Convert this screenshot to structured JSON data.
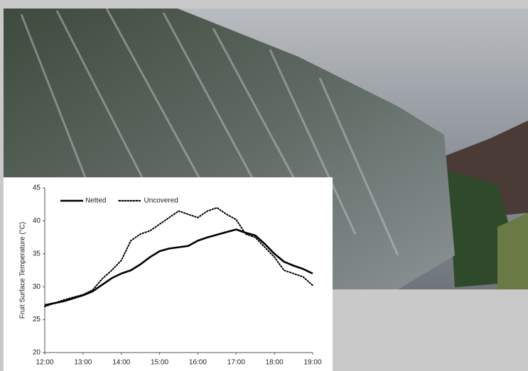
{
  "chart_data": {
    "type": "line",
    "y_label": "Fruit Surface Temperature (°C)",
    "x": [
      12,
      12.5,
      13,
      13.25,
      13.5,
      13.75,
      14,
      14.25,
      14.5,
      14.75,
      15,
      15.25,
      15.5,
      15.75,
      16,
      16.25,
      16.5,
      16.75,
      17,
      17.25,
      17.5,
      17.75,
      18,
      18.25,
      18.5,
      18.75,
      19
    ],
    "series": [
      {
        "name": "Netted",
        "color": "#000000",
        "style": "solid",
        "values": [
          27.2,
          27.8,
          28.7,
          29.3,
          30.3,
          31.3,
          32.0,
          32.5,
          33.4,
          34.5,
          35.4,
          35.8,
          36.0,
          36.2,
          37.0,
          37.5,
          37.9,
          38.3,
          38.7,
          38.2,
          37.8,
          36.5,
          35.0,
          33.8,
          33.2,
          32.7,
          32.0
        ]
      },
      {
        "name": "Uncovered",
        "color": "#000000",
        "style": "dotted",
        "values": [
          27.0,
          28.0,
          28.8,
          29.5,
          31.2,
          32.5,
          34.0,
          37.0,
          38.0,
          38.5,
          39.5,
          40.5,
          41.5,
          41.0,
          40.5,
          41.5,
          42.0,
          41.0,
          40.2,
          38.0,
          37.5,
          36.0,
          34.5,
          32.5,
          32.0,
          31.5,
          30.2
        ]
      }
    ],
    "xlim": [
      12,
      19
    ],
    "xticks": [
      {
        "value": 12,
        "label": "12:00"
      },
      {
        "value": 13,
        "label": "13:00"
      },
      {
        "value": 14,
        "label": "14:00"
      },
      {
        "value": 15,
        "label": "15:00"
      },
      {
        "value": 16,
        "label": "16:00"
      },
      {
        "value": 17,
        "label": "17:00"
      },
      {
        "value": 18,
        "label": "18:00"
      },
      {
        "value": 19,
        "label": "19:00"
      }
    ],
    "ylim": [
      20,
      45
    ],
    "yticks": [
      20,
      25,
      30,
      35,
      40,
      45
    ],
    "legend": "top-left"
  }
}
